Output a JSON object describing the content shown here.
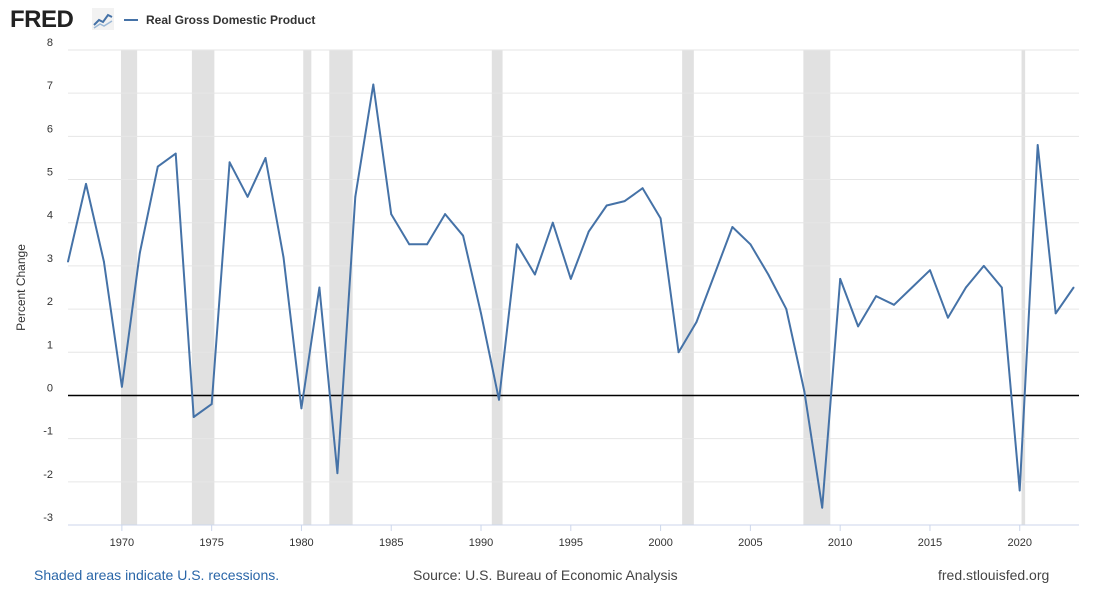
{
  "header": {
    "logo_text": "FRED",
    "logo_icon": "line-chart-icon",
    "legend_label": "Real Gross Domestic Product"
  },
  "colors": {
    "series": "#4572a7",
    "recession": "#e1e1e1",
    "zero_line": "#000000",
    "grid": "#e6e6e6",
    "footer_link": "#2a66a8"
  },
  "footer": {
    "recession_note": "Shaded areas indicate U.S. recessions.",
    "source": "Source: U.S. Bureau of Economic Analysis",
    "url": "fred.stlouisfed.org"
  },
  "chart_data": {
    "type": "line",
    "title": "",
    "ylabel": "Percent Change",
    "xlabel": "",
    "legend": "top-left",
    "grid": true,
    "xlim": [
      1967,
      2023.3
    ],
    "ylim": [
      -3,
      8
    ],
    "y_ticks": [
      -3,
      -2,
      -1,
      0,
      1,
      2,
      3,
      4,
      5,
      6,
      7,
      8
    ],
    "x_ticks": [
      1970,
      1975,
      1980,
      1985,
      1990,
      1995,
      2000,
      2005,
      2010,
      2015,
      2020
    ],
    "recessions": [
      [
        1969.95,
        1970.85
      ],
      [
        1973.9,
        1975.15
      ],
      [
        1980.1,
        1980.55
      ],
      [
        1981.55,
        1982.85
      ],
      [
        1990.6,
        1991.2
      ],
      [
        2001.2,
        2001.85
      ],
      [
        2007.95,
        2009.45
      ],
      [
        2020.1,
        2020.3
      ]
    ],
    "series": [
      {
        "name": "Real Gross Domestic Product",
        "x": [
          1967,
          1968,
          1969,
          1970,
          1971,
          1972,
          1973,
          1974,
          1975,
          1976,
          1977,
          1978,
          1979,
          1980,
          1981,
          1982,
          1983,
          1984,
          1985,
          1986,
          1987,
          1988,
          1989,
          1990,
          1991,
          1992,
          1993,
          1994,
          1995,
          1996,
          1997,
          1998,
          1999,
          2000,
          2001,
          2002,
          2003,
          2004,
          2005,
          2006,
          2007,
          2008,
          2009,
          2010,
          2011,
          2012,
          2013,
          2014,
          2015,
          2016,
          2017,
          2018,
          2019,
          2020,
          2021,
          2022,
          2023
        ],
        "values": [
          3.1,
          4.9,
          3.1,
          0.2,
          3.3,
          5.3,
          5.6,
          -0.5,
          -0.2,
          5.4,
          4.6,
          5.5,
          3.2,
          -0.3,
          2.5,
          -1.8,
          4.6,
          7.2,
          4.2,
          3.5,
          3.5,
          4.2,
          3.7,
          1.9,
          -0.1,
          3.5,
          2.8,
          4.0,
          2.7,
          3.8,
          4.4,
          4.5,
          4.8,
          4.1,
          1.0,
          1.7,
          2.8,
          3.9,
          3.5,
          2.8,
          2.0,
          0.1,
          -2.6,
          2.7,
          1.6,
          2.3,
          2.1,
          2.5,
          2.9,
          1.8,
          2.5,
          3.0,
          2.5,
          -2.2,
          5.8,
          1.9,
          2.5
        ]
      }
    ]
  }
}
